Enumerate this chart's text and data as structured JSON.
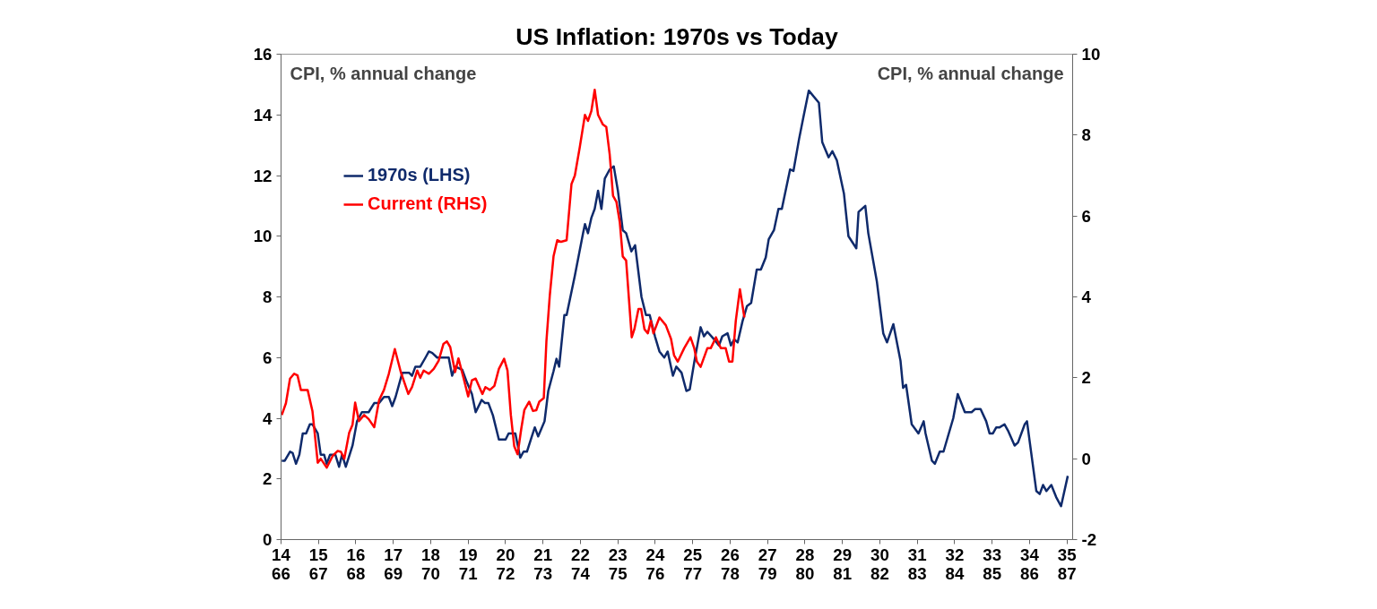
{
  "chart_data": {
    "type": "line",
    "title": "US Inflation: 1970s vs Today",
    "ylabel": "CPI, % annual change",
    "y2label": "CPI, % annual change",
    "xlim": [
      14,
      35.15
    ],
    "xticks": [
      14,
      15,
      16,
      17,
      18,
      19,
      20,
      21,
      22,
      23,
      24,
      25,
      26,
      27,
      28,
      29,
      30,
      31,
      32,
      33,
      34,
      35
    ],
    "x2lim": [
      66,
      87.15
    ],
    "x2ticks": [
      66,
      67,
      68,
      69,
      70,
      71,
      72,
      73,
      74,
      75,
      76,
      77,
      78,
      79,
      80,
      81,
      82,
      83,
      84,
      85,
      86,
      87
    ],
    "ylim": [
      0,
      16
    ],
    "yticks": [
      0,
      2,
      4,
      6,
      8,
      10,
      12,
      14,
      16
    ],
    "y2lim": [
      -2,
      10
    ],
    "y2ticks": [
      -2,
      0,
      2,
      4,
      6,
      8,
      10
    ],
    "grid": false,
    "legend": "top left",
    "series": [
      {
        "name": "1970s (LHS)",
        "color": "#0f2a6b",
        "x": [
          14.02,
          14.1,
          14.24,
          14.31,
          14.4,
          14.49,
          14.58,
          14.67,
          14.77,
          14.84,
          14.98,
          15.06,
          15.15,
          15.22,
          15.31,
          15.45,
          15.55,
          15.63,
          15.73,
          15.91,
          16.03,
          16.16,
          16.34,
          16.49,
          16.62,
          16.75,
          16.88,
          16.97,
          17.06,
          17.24,
          17.42,
          17.5,
          17.59,
          17.72,
          17.86,
          17.95,
          18.04,
          18.17,
          18.3,
          18.48,
          18.57,
          18.66,
          18.84,
          18.96,
          19.1,
          19.2,
          19.36,
          19.45,
          19.54,
          19.66,
          19.82,
          20.0,
          20.08,
          20.26,
          20.39,
          20.48,
          20.57,
          20.7,
          20.78,
          20.87,
          21.04,
          21.14,
          21.28,
          21.36,
          21.43,
          21.57,
          21.63,
          21.85,
          22.07,
          22.12,
          22.2,
          22.29,
          22.38,
          22.47,
          22.56,
          22.65,
          22.78,
          22.89,
          23.0,
          23.13,
          23.22,
          23.36,
          23.46,
          23.63,
          23.75,
          23.85,
          23.99,
          24.11,
          24.24,
          24.33,
          24.47,
          24.56,
          24.7,
          24.83,
          24.92,
          25.04,
          25.21,
          25.3,
          25.39,
          25.57,
          25.7,
          25.79,
          25.93,
          26.02,
          26.11,
          26.2,
          26.33,
          26.45,
          26.56,
          26.71,
          26.82,
          26.95,
          27.03,
          27.17,
          27.29,
          27.38,
          27.6,
          27.69,
          27.84,
          27.96,
          28.1,
          28.37,
          28.46,
          28.63,
          28.73,
          28.85,
          29.04,
          29.16,
          29.37,
          29.43,
          29.61,
          29.69,
          29.92,
          30.09,
          30.19,
          30.36,
          30.55,
          30.62,
          30.7,
          30.85,
          31.03,
          31.17,
          31.22,
          31.39,
          31.47,
          31.6,
          31.7,
          31.96,
          32.08,
          32.27,
          32.45,
          32.54,
          32.69,
          32.84,
          32.93,
          33.02,
          33.11,
          33.2,
          33.33,
          33.42,
          33.6,
          33.69,
          33.87,
          33.93,
          34.18,
          34.27,
          34.36,
          34.45,
          34.58,
          34.71,
          34.84,
          35.02
        ],
        "values": [
          2.6,
          2.6,
          2.9,
          2.85,
          2.5,
          2.8,
          3.5,
          3.5,
          3.8,
          3.8,
          3.5,
          2.8,
          2.8,
          2.5,
          2.8,
          2.8,
          2.4,
          2.8,
          2.4,
          3.1,
          3.9,
          4.2,
          4.2,
          4.5,
          4.5,
          4.7,
          4.7,
          4.4,
          4.7,
          5.5,
          5.5,
          5.4,
          5.7,
          5.7,
          6.0,
          6.2,
          6.15,
          6.0,
          6.0,
          6.0,
          5.4,
          5.7,
          5.6,
          5.2,
          4.8,
          4.2,
          4.6,
          4.5,
          4.5,
          4.1,
          3.3,
          3.3,
          3.5,
          3.5,
          2.7,
          2.9,
          2.9,
          3.4,
          3.7,
          3.4,
          3.9,
          4.9,
          5.55,
          5.96,
          5.7,
          7.4,
          7.4,
          8.7,
          10.1,
          10.4,
          10.1,
          10.6,
          10.9,
          11.5,
          10.9,
          11.9,
          12.2,
          12.3,
          11.5,
          10.2,
          10.1,
          9.5,
          9.7,
          8.0,
          7.4,
          7.4,
          6.7,
          6.2,
          6.0,
          6.2,
          5.4,
          5.7,
          5.5,
          4.9,
          4.95,
          5.85,
          7.0,
          6.7,
          6.85,
          6.6,
          6.4,
          6.7,
          6.8,
          6.4,
          6.6,
          6.5,
          7.2,
          7.7,
          7.8,
          8.9,
          8.9,
          9.3,
          9.9,
          10.2,
          10.9,
          10.9,
          12.2,
          12.15,
          13.2,
          13.95,
          14.8,
          14.4,
          13.1,
          12.6,
          12.8,
          12.5,
          11.4,
          10.0,
          9.6,
          10.8,
          11.0,
          10.1,
          8.5,
          6.8,
          6.5,
          7.1,
          5.9,
          5.0,
          5.1,
          3.8,
          3.5,
          3.9,
          3.5,
          2.6,
          2.5,
          2.9,
          2.9,
          4.0,
          4.8,
          4.2,
          4.2,
          4.3,
          4.3,
          3.9,
          3.5,
          3.5,
          3.7,
          3.7,
          3.8,
          3.6,
          3.1,
          3.2,
          3.8,
          3.9,
          1.6,
          1.5,
          1.8,
          1.6,
          1.8,
          1.4,
          1.1,
          2.1
        ]
      },
      {
        "name": "Current (RHS)",
        "color": "#ff0000",
        "axis": "y2",
        "x": [
          14.02,
          14.13,
          14.24,
          14.35,
          14.44,
          14.53,
          14.71,
          14.84,
          14.98,
          15.06,
          15.22,
          15.38,
          15.51,
          15.6,
          15.69,
          15.82,
          15.91,
          15.98,
          16.08,
          16.22,
          16.34,
          16.49,
          16.62,
          16.75,
          16.88,
          17.04,
          17.2,
          17.4,
          17.5,
          17.64,
          17.72,
          17.81,
          17.95,
          18.08,
          18.21,
          18.34,
          18.43,
          18.52,
          18.65,
          18.74,
          18.88,
          19.0,
          19.1,
          19.2,
          19.38,
          19.46,
          19.58,
          19.7,
          19.82,
          19.96,
          20.05,
          20.14,
          20.23,
          20.32,
          20.42,
          20.5,
          20.63,
          20.73,
          20.82,
          20.9,
          21.02,
          21.09,
          21.18,
          21.28,
          21.38,
          21.48,
          21.63,
          21.76,
          21.85,
          21.98,
          22.12,
          22.2,
          22.29,
          22.38,
          22.47,
          22.6,
          22.69,
          22.78,
          22.87,
          22.96,
          23.05,
          23.13,
          23.22,
          23.37,
          23.44,
          23.55,
          23.62,
          23.71,
          23.8,
          23.88,
          23.95,
          24.11,
          24.28,
          24.42,
          24.5,
          24.6,
          24.77,
          24.94,
          25.04,
          25.11,
          25.21,
          25.39,
          25.48,
          25.62,
          25.75,
          25.88,
          25.97,
          26.06,
          26.15,
          26.26,
          26.38
        ],
        "values": [
          1.08,
          1.37,
          1.98,
          2.1,
          2.06,
          1.7,
          1.7,
          1.17,
          -0.1,
          0.0,
          -0.22,
          0.07,
          0.19,
          0.17,
          0.0,
          0.64,
          0.84,
          1.39,
          0.93,
          1.08,
          0.98,
          0.78,
          1.45,
          1.7,
          2.1,
          2.71,
          2.14,
          1.6,
          1.77,
          2.18,
          2.0,
          2.18,
          2.1,
          2.22,
          2.42,
          2.84,
          2.9,
          2.76,
          2.14,
          2.48,
          1.98,
          1.54,
          1.94,
          1.98,
          1.6,
          1.77,
          1.7,
          1.8,
          2.22,
          2.47,
          2.18,
          1.08,
          0.31,
          0.11,
          0.75,
          1.2,
          1.41,
          1.18,
          1.2,
          1.41,
          1.5,
          2.9,
          4.03,
          5.0,
          5.4,
          5.36,
          5.4,
          6.79,
          7.0,
          7.69,
          8.5,
          8.35,
          8.59,
          9.12,
          8.5,
          8.26,
          8.2,
          7.53,
          6.5,
          6.35,
          5.85,
          5.0,
          4.9,
          3.0,
          3.2,
          3.7,
          3.7,
          3.2,
          3.1,
          3.41,
          3.1,
          3.49,
          3.3,
          2.96,
          2.56,
          2.4,
          2.73,
          3.0,
          2.73,
          2.4,
          2.27,
          2.73,
          2.73,
          3.0,
          2.73,
          2.73,
          2.4,
          2.4,
          3.41,
          4.19,
          3.49
        ]
      }
    ]
  }
}
